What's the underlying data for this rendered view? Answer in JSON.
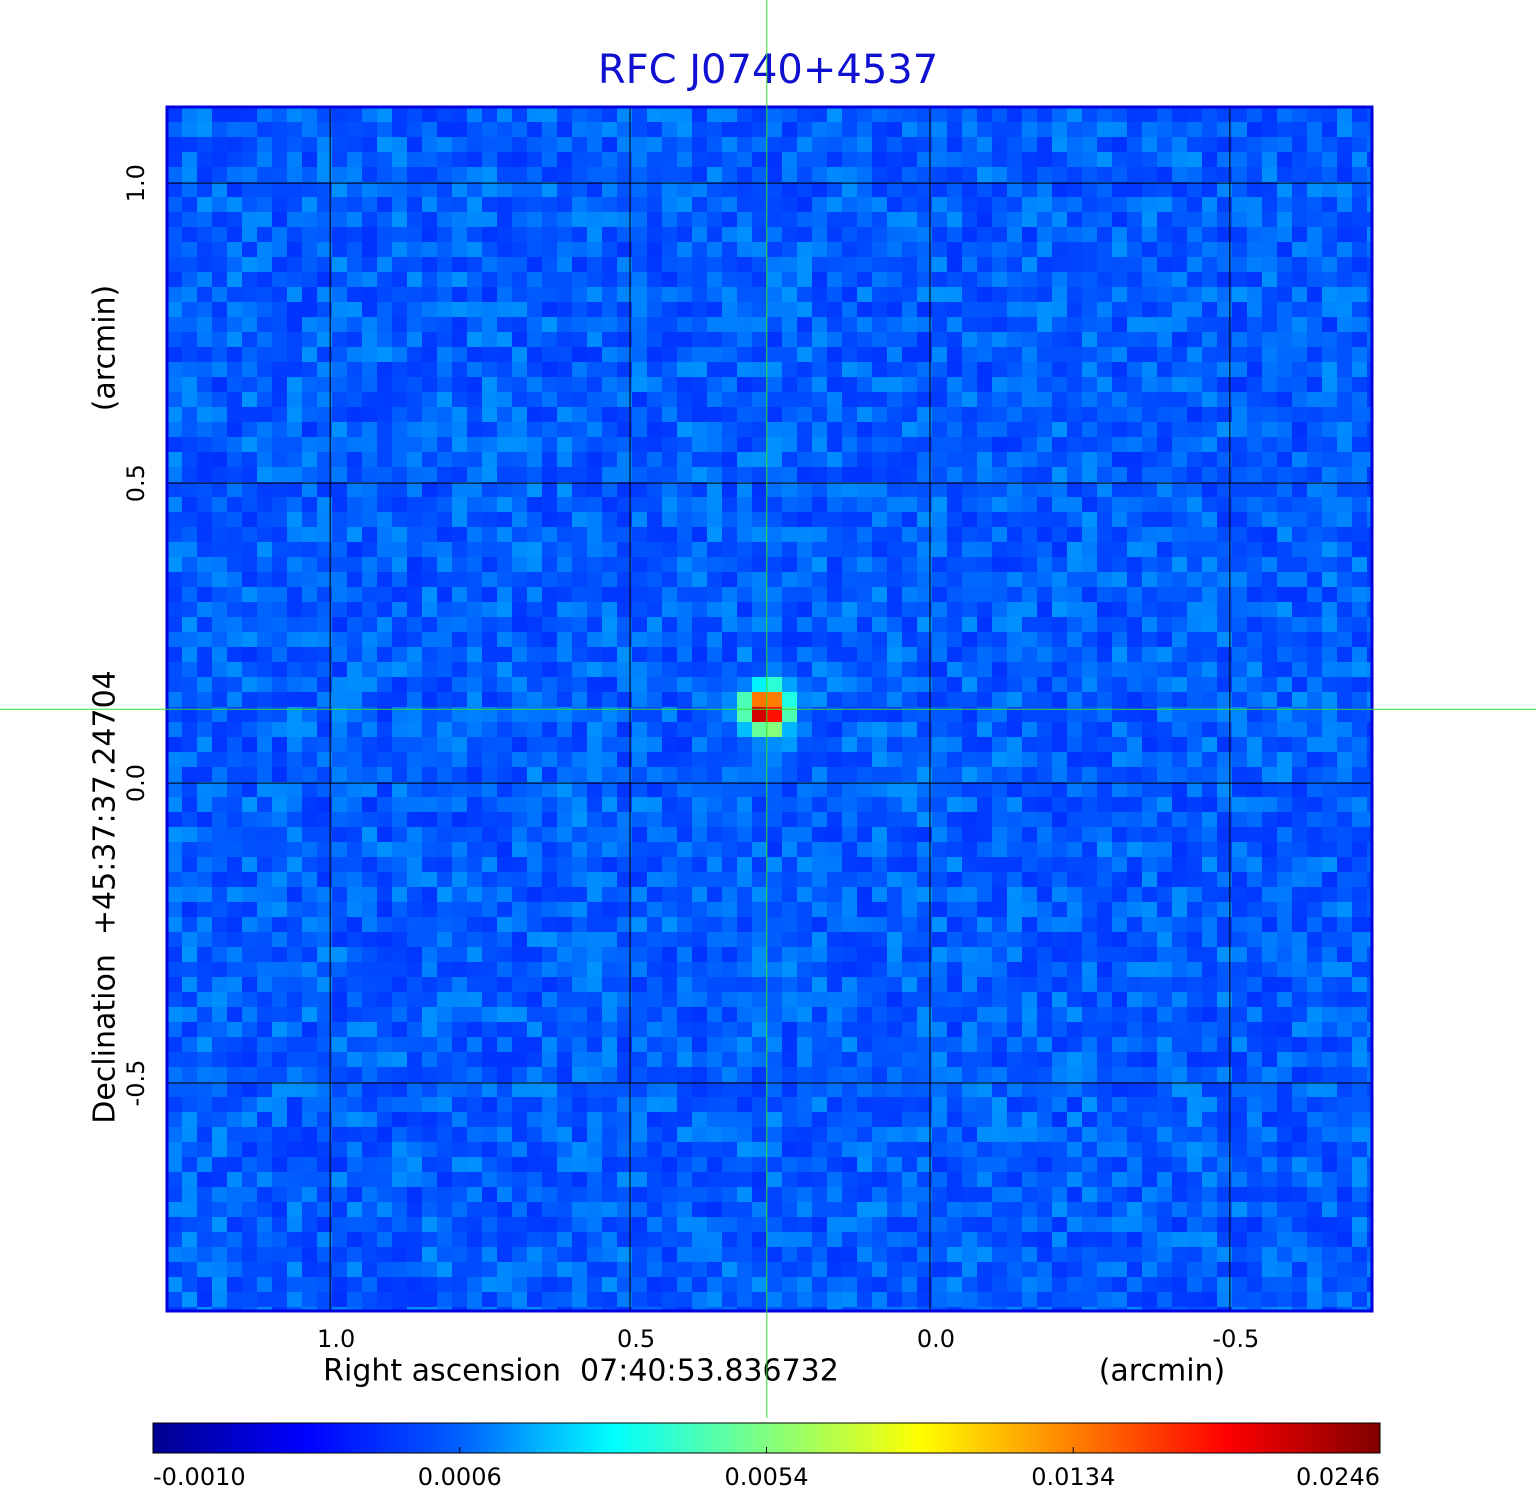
{
  "chart_data": {
    "type": "image",
    "title": "RFC J0740+4537",
    "xlabel": "Right ascension  07:40:53.836732",
    "xunit": "(arcmin)",
    "ylabel": "Declination  +45:37:37.24704",
    "yunit": "(arcmin)",
    "xlim": [
      1.272,
      -0.737
    ],
    "ylim": [
      -0.88,
      1.127
    ],
    "xticks": [
      {
        "value": 1,
        "label": "1.0"
      },
      {
        "value": 0.5,
        "label": "0.5"
      },
      {
        "value": 0,
        "label": "0.0"
      },
      {
        "value": -0.5,
        "label": "-0.5"
      }
    ],
    "yticks": [
      {
        "value": -0.5,
        "label": "-0.5"
      },
      {
        "value": 0,
        "label": "0.0"
      },
      {
        "value": 0.5,
        "label": "0.5"
      },
      {
        "value": 1,
        "label": "1.0"
      }
    ],
    "grid": true,
    "crosshair": {
      "x": 0.272,
      "y": 0.123
    },
    "frame_color": "#0000e0",
    "title_color": "#1010d0",
    "crosshair_color": "#33dd33",
    "colormap": [
      "#00008f",
      "#0000ff",
      "#0060ff",
      "#00ffff",
      "#80ff80",
      "#ffff00",
      "#ff8000",
      "#ff0000",
      "#800000"
    ],
    "colorbar_ticks": [
      {
        "value": -0.001,
        "label": "-0.0010"
      },
      {
        "value": 0.0006,
        "label": "0.0006"
      },
      {
        "value": 0.0054,
        "label": "0.0054"
      },
      {
        "value": 0.0134,
        "label": "0.0134"
      },
      {
        "value": 0.0246,
        "label": "0.0246"
      }
    ]
  }
}
